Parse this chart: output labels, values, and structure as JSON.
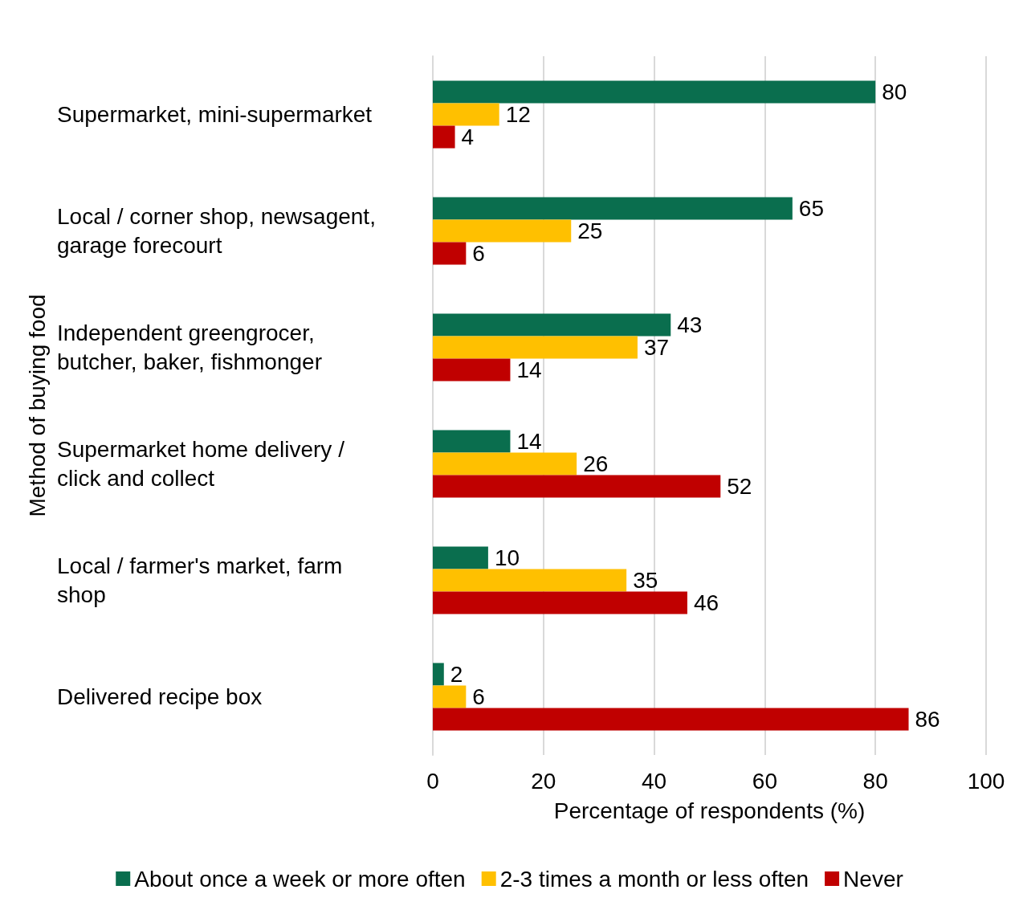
{
  "chart_data": {
    "type": "bar",
    "orientation": "horizontal",
    "xlabel": "Percentage of respondents (%)",
    "ylabel": "Method of buying food",
    "categories": [
      "Supermarket, mini-supermarket",
      "Local / corner shop, newsagent, garage forecourt",
      "Independent greengrocer, butcher, baker, fishmonger",
      "Supermarket home delivery / click and collect",
      "Local / farmer's market, farm shop",
      "Delivered recipe box"
    ],
    "series": [
      {
        "name": "About once a week or more often",
        "color": "#0a6e4e",
        "values": [
          80,
          65,
          43,
          14,
          10,
          2
        ]
      },
      {
        "name": "2-3 times a month or less often",
        "color": "#ffc000",
        "values": [
          12,
          25,
          37,
          26,
          35,
          6
        ]
      },
      {
        "name": "Never",
        "color": "#c00000",
        "values": [
          4,
          6,
          14,
          52,
          46,
          86
        ]
      }
    ],
    "xlim": [
      0,
      100
    ],
    "xticks": [
      0,
      20,
      40,
      60,
      80,
      100
    ],
    "grid": "x",
    "legend": "bottom",
    "data_labels": true
  }
}
